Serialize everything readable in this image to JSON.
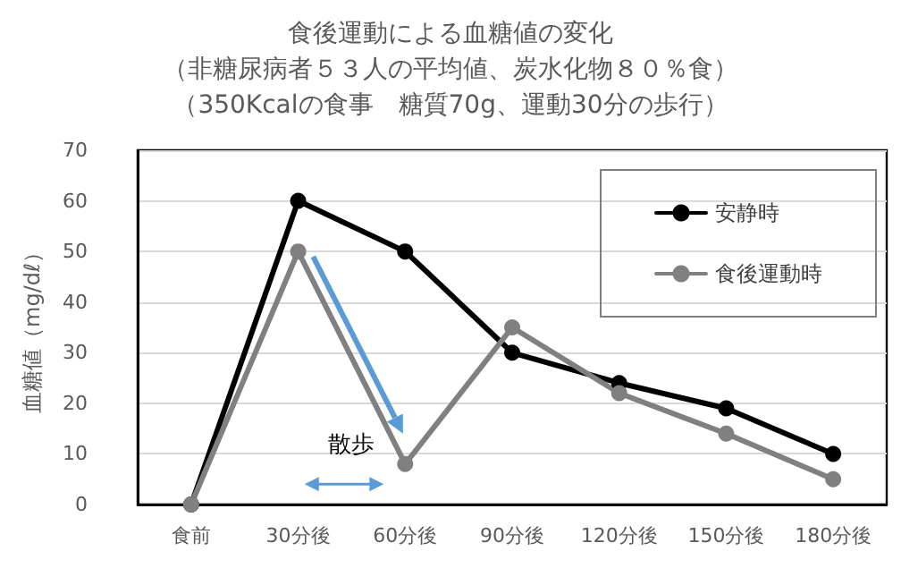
{
  "chart_data": {
    "type": "line",
    "title": "食後運動による血糖値の変化",
    "subtitle": "（非糖尿病者５３人の平均値、炭水化物８０％食）（350Kcalの食事　糖質70g、運動30分の歩行）",
    "ylabel": "血糖値（mg/dℓ）",
    "categories": [
      "食前",
      "30分後",
      "60分後",
      "90分後",
      "120分後",
      "150分後",
      "180分後"
    ],
    "series": [
      {
        "name": "安静時",
        "color": "#000000",
        "values": [
          0,
          60,
          50,
          30,
          24,
          19,
          10
        ]
      },
      {
        "name": "食後運動時",
        "color": "#808080",
        "values": [
          0,
          50,
          8,
          35,
          22,
          14,
          5
        ]
      }
    ],
    "ylim": [
      0,
      70
    ],
    "yticks": [
      0,
      10,
      20,
      30,
      40,
      50,
      60,
      70
    ],
    "grid": "y",
    "legend": "top right",
    "marker": "circle",
    "line_style": "solid",
    "annotations": [
      "散歩"
    ]
  }
}
